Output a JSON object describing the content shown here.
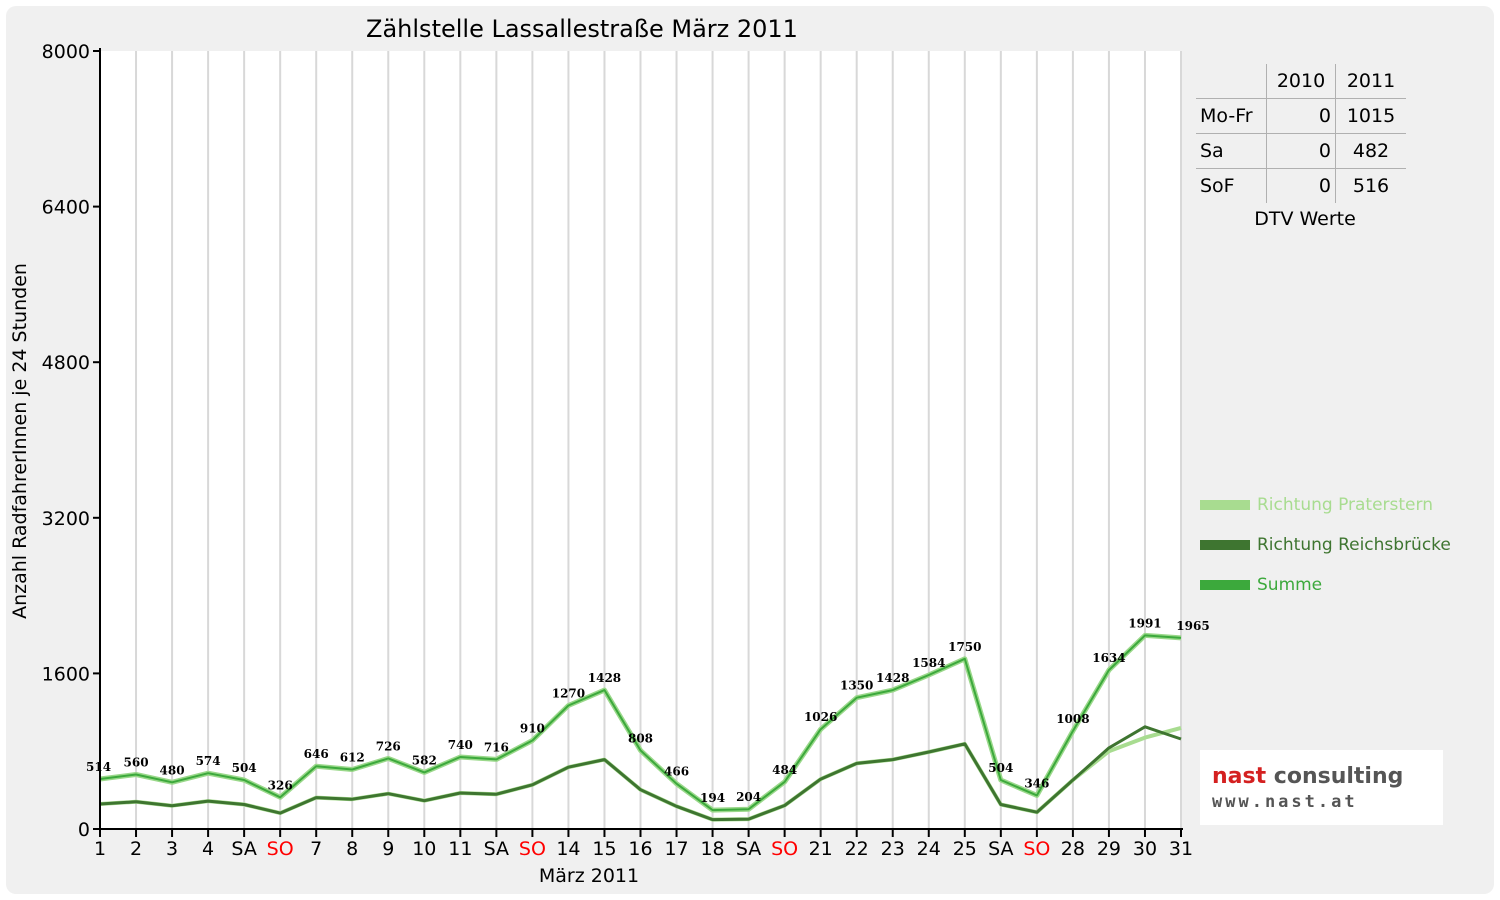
{
  "chart_data": {
    "type": "line",
    "title": "Zählstelle Lassallestraße März 2011",
    "xlabel": "März 2011",
    "ylabel": "Anzahl RadfahrerInnen je 24 Stunden",
    "ylim": [
      0,
      8000
    ],
    "yticks": [
      "0",
      "1600",
      "3200",
      "4800",
      "6400",
      "8000"
    ],
    "grid": true,
    "legend_position": "right",
    "categories": [
      "1",
      "2",
      "3",
      "4",
      "SA",
      "SO",
      "7",
      "8",
      "9",
      "10",
      "11",
      "SA",
      "SO",
      "14",
      "15",
      "16",
      "17",
      "18",
      "SA",
      "SO",
      "21",
      "22",
      "23",
      "24",
      "25",
      "SA",
      "SO",
      "28",
      "29",
      "30",
      "31"
    ],
    "category_colors": [
      "#000000",
      "#000000",
      "#000000",
      "#000000",
      "#000000",
      "#ff0000",
      "#000000",
      "#000000",
      "#000000",
      "#000000",
      "#000000",
      "#000000",
      "#ff0000",
      "#000000",
      "#000000",
      "#000000",
      "#000000",
      "#000000",
      "#000000",
      "#ff0000",
      "#000000",
      "#000000",
      "#000000",
      "#000000",
      "#000000",
      "#000000",
      "#ff0000",
      "#000000",
      "#000000",
      "#000000",
      "#000000"
    ],
    "series": [
      {
        "name": "Richtung Praterstern",
        "color": "#a8dc90",
        "values": [
          257,
          280,
          240,
          287,
          252,
          163,
          323,
          306,
          363,
          291,
          370,
          358,
          455,
          635,
          714,
          404,
          233,
          97,
          102,
          242,
          513,
          675,
          714,
          792,
          875,
          252,
          173,
          504,
          800,
          940,
          1040
        ]
      },
      {
        "name": "Richtung Reichsbrücke",
        "color": "#3e7530",
        "values": [
          257,
          280,
          240,
          287,
          252,
          163,
          323,
          306,
          363,
          291,
          370,
          358,
          455,
          635,
          714,
          404,
          233,
          97,
          102,
          242,
          513,
          675,
          714,
          792,
          875,
          252,
          173,
          504,
          834,
          1051,
          925
        ]
      },
      {
        "name": "Summe",
        "color": "#3ca93c",
        "values": [
          514,
          560,
          480,
          574,
          504,
          326,
          646,
          612,
          726,
          582,
          740,
          716,
          910,
          1270,
          1428,
          808,
          466,
          194,
          204,
          484,
          1026,
          1350,
          1428,
          1584,
          1750,
          504,
          346,
          1008,
          1634,
          1991,
          1965
        ]
      }
    ],
    "data_labels": [
      "514",
      "560",
      "480",
      "574",
      "504",
      "326",
      "646",
      "612",
      "726",
      "582",
      "740",
      "716",
      "910",
      "1270",
      "1428",
      "808",
      "466",
      "194",
      "204",
      "484",
      "1026",
      "1350",
      "1428",
      "1584",
      "1750",
      "504",
      "346",
      "1008",
      "1634",
      "1991",
      "1965"
    ]
  },
  "dtv_table": {
    "headers": [
      "",
      "2010",
      "2011"
    ],
    "rows": [
      {
        "label": "Mo-Fr",
        "y2010": "0",
        "y2011": "1015"
      },
      {
        "label": "Sa",
        "y2010": "0",
        "y2011": "482"
      },
      {
        "label": "SoF",
        "y2010": "0",
        "y2011": "516"
      }
    ],
    "caption": "DTV Werte"
  },
  "logo": {
    "main_red": "nast",
    "main_gray": " consulting",
    "sub": "www.nast.at"
  }
}
